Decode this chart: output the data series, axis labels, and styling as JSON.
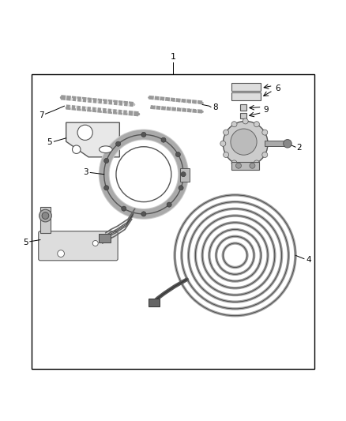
{
  "background_color": "#ffffff",
  "border_color": "#000000",
  "line_color": "#000000",
  "text_color": "#000000",
  "fig_width": 4.38,
  "fig_height": 5.33,
  "dpi": 100,
  "border": [
    0.09,
    0.04,
    0.91,
    0.895
  ]
}
